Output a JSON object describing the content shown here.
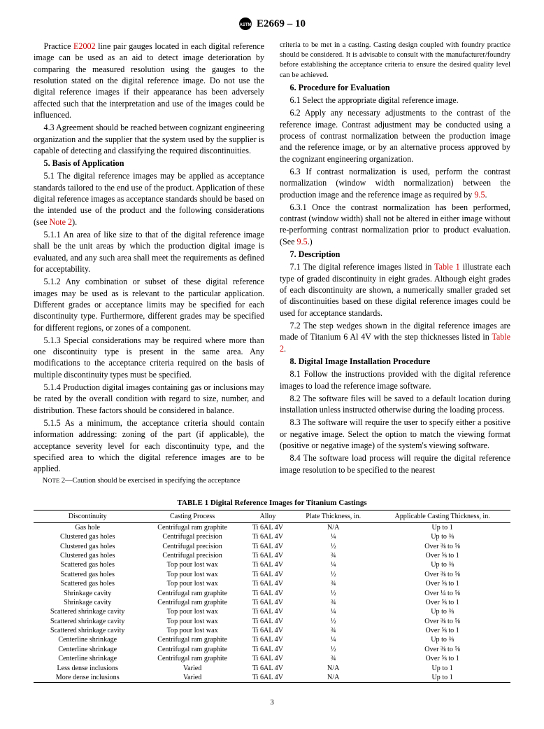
{
  "header": {
    "designation": "E2669 – 10"
  },
  "left": {
    "p42": "Practice <span class='redlink'>E2002</span> line pair gauges located in each digital reference image can be used as an aid to detect image deterioration by comparing the measured resolution using the gauges to the resolution stated on the digital reference image. Do not use the digital reference images if their appearance has been adversely affected such that the interpretation and use of the images could be influenced.",
    "p43": "4.3 Agreement should be reached between cognizant engineering organization and the supplier that the system used by the supplier is capable of detecting and classifying the required discontinuities.",
    "sec5": "5. Basis of Application",
    "p51": "5.1 The digital reference images may be applied as acceptance standards tailored to the end use of the product. Application of these digital reference images as acceptance standards should be based on the intended use of the product and the following considerations (see <span class='redlink'>Note 2</span>).",
    "p511": "5.1.1 An area of like size to that of the digital reference image shall be the unit areas by which the production digital image is evaluated, and any such area shall meet the requirements as defined for acceptability.",
    "p512": "5.1.2 Any combination or subset of these digital reference images may be used as is relevant to the particular application. Different grades or acceptance limits may be specified for each discontinuity type. Furthermore, different grades may be specified for different regions, or zones of a component.",
    "p513": "5.1.3 Special considerations may be required where more than one discontinuity type is present in the same area. Any modifications to the acceptance criteria required on the basis of multiple discontinuity types must be specified.",
    "p514": "5.1.4 Production digital images containing gas or inclusions may be rated by the overall condition with regard to size, number, and distribution. These factors should be considered in balance.",
    "p515": "5.1.5 As a minimum, the acceptance criteria should contain information addressing: zoning of the part (if applicable), the acceptance severity level for each discontinuity type, and the specified area to which the digital reference images are to be applied.",
    "note2a": "N<small>OTE</small> 2—Caution should be exercised in specifying the acceptance"
  },
  "right": {
    "note2b": "criteria to be met in a casting. Casting design coupled with foundry practice should be considered. It is advisable to consult with the manufacturer/foundry before establishing the acceptance criteria to ensure the desired quality level can be achieved.",
    "sec6": "6. Procedure for Evaluation",
    "p61": "6.1 Select the appropriate digital reference image.",
    "p62": "6.2 Apply any necessary adjustments to the contrast of the reference image. Contrast adjustment may be conducted using a process of contrast normalization between the production image and the reference image, or by an alternative process approved by the cognizant engineering organization.",
    "p63": "6.3 If contrast normalization is used, perform the contrast normalization (window width normalization) between the production image and the reference image as required by <span class='redlink'>9.5</span>.",
    "p631": "6.3.1 Once the contrast normalization has been performed, contrast (window width) shall not be altered in either image without re-performing contrast normalization prior to product evaluation. (See <span class='redlink'>9.5</span>.)",
    "sec7": "7. Description",
    "p71": "7.1 The digital reference images listed in <span class='redlink'>Table 1</span> illustrate each type of graded discontinuity in eight grades. Although eight grades of each discontinuity are shown, a numerically smaller graded set of discontinuities based on these digital reference images could be used for acceptance standards.",
    "p72": "7.2 The step wedges shown in the digital reference images are made of Titanium 6 Al 4V with the step thicknesses listed in <span class='redlink'>Table 2</span>.",
    "sec8": "8. Digital Image Installation Procedure",
    "p81": "8.1 Follow the instructions provided with the digital reference images to load the reference image software.",
    "p82": "8.2 The software files will be saved to a default location during installation unless instructed otherwise during the loading process.",
    "p83": "8.3 The software will require the user to specify either a positive or negative image. Select the option to match the viewing format (positive or negative image) of the system's viewing software.",
    "p84": "8.4 The software load process will require the digital reference image resolution to be specified to the nearest"
  },
  "table1": {
    "title": "TABLE 1 Digital Reference Images for Titanium Castings",
    "columns": [
      "Discontinuity",
      "Casting Process",
      "Alloy",
      "Plate Thickness, in.",
      "Applicable Casting Thickness, in."
    ],
    "rows": [
      [
        "Gas hole",
        "Centrifugal ram graphite",
        "Ti 6AL 4V",
        "N/A",
        "Up to 1"
      ],
      [
        "Clustered gas holes",
        "Centrifugal precision",
        "Ti 6AL 4V",
        "¼",
        "Up to ⅜"
      ],
      [
        "Clustered gas holes",
        "Centrifugal precision",
        "Ti 6AL 4V",
        "½",
        "Over ⅜ to ⅝"
      ],
      [
        "Clustered gas holes",
        "Centrifugal precision",
        "Ti 6AL 4V",
        "¾",
        "Over ⅝ to 1"
      ],
      [
        "Scattered gas holes",
        "Top pour lost wax",
        "Ti 6AL 4V",
        "¼",
        "Up to ⅜"
      ],
      [
        "Scattered gas holes",
        "Top pour lost wax",
        "Ti 6AL 4V",
        "½",
        "Over ⅜ to ⅝"
      ],
      [
        "Scattered gas holes",
        "Top pour lost wax",
        "Ti 6AL 4V",
        "¾",
        "Over ⅝ to 1"
      ],
      [
        "Shrinkage cavity",
        "Centrifugal ram graphite",
        "Ti 6AL 4V",
        "½",
        "Over ¼ to ⅝"
      ],
      [
        "Shrinkage cavity",
        "Centrifugal ram graphite",
        "Ti 6AL 4V",
        "¾",
        "Over ⅝ to 1"
      ],
      [
        "Scattered shrinkage cavity",
        "Top pour lost wax",
        "Ti 6AL 4V",
        "¼",
        "Up to ⅜"
      ],
      [
        "Scattered shrinkage cavity",
        "Top pour lost wax",
        "Ti 6AL 4V",
        "½",
        "Over ⅜ to ⅝"
      ],
      [
        "Scattered shrinkage cavity",
        "Top pour lost wax",
        "Ti 6AL 4V",
        "¾",
        "Over ⅝ to 1"
      ],
      [
        "Centerline shrinkage",
        "Centrifugal ram graphite",
        "Ti 6AL 4V",
        "¼",
        "Up to ⅜"
      ],
      [
        "Centerline shrinkage",
        "Centrifugal ram graphite",
        "Ti 6AL 4V",
        "½",
        "Over ⅜ to ⅝"
      ],
      [
        "Centerline shrinkage",
        "Centrifugal ram graphite",
        "Ti 6AL 4V",
        "¾",
        "Over ⅝ to 1"
      ],
      [
        "Less dense inclusions",
        "Varied",
        "Ti 6AL 4V",
        "N/A",
        "Up to 1"
      ],
      [
        "More dense inclusions",
        "Varied",
        "Ti 6AL 4V",
        "N/A",
        "Up to 1"
      ]
    ]
  },
  "page_number": "3"
}
